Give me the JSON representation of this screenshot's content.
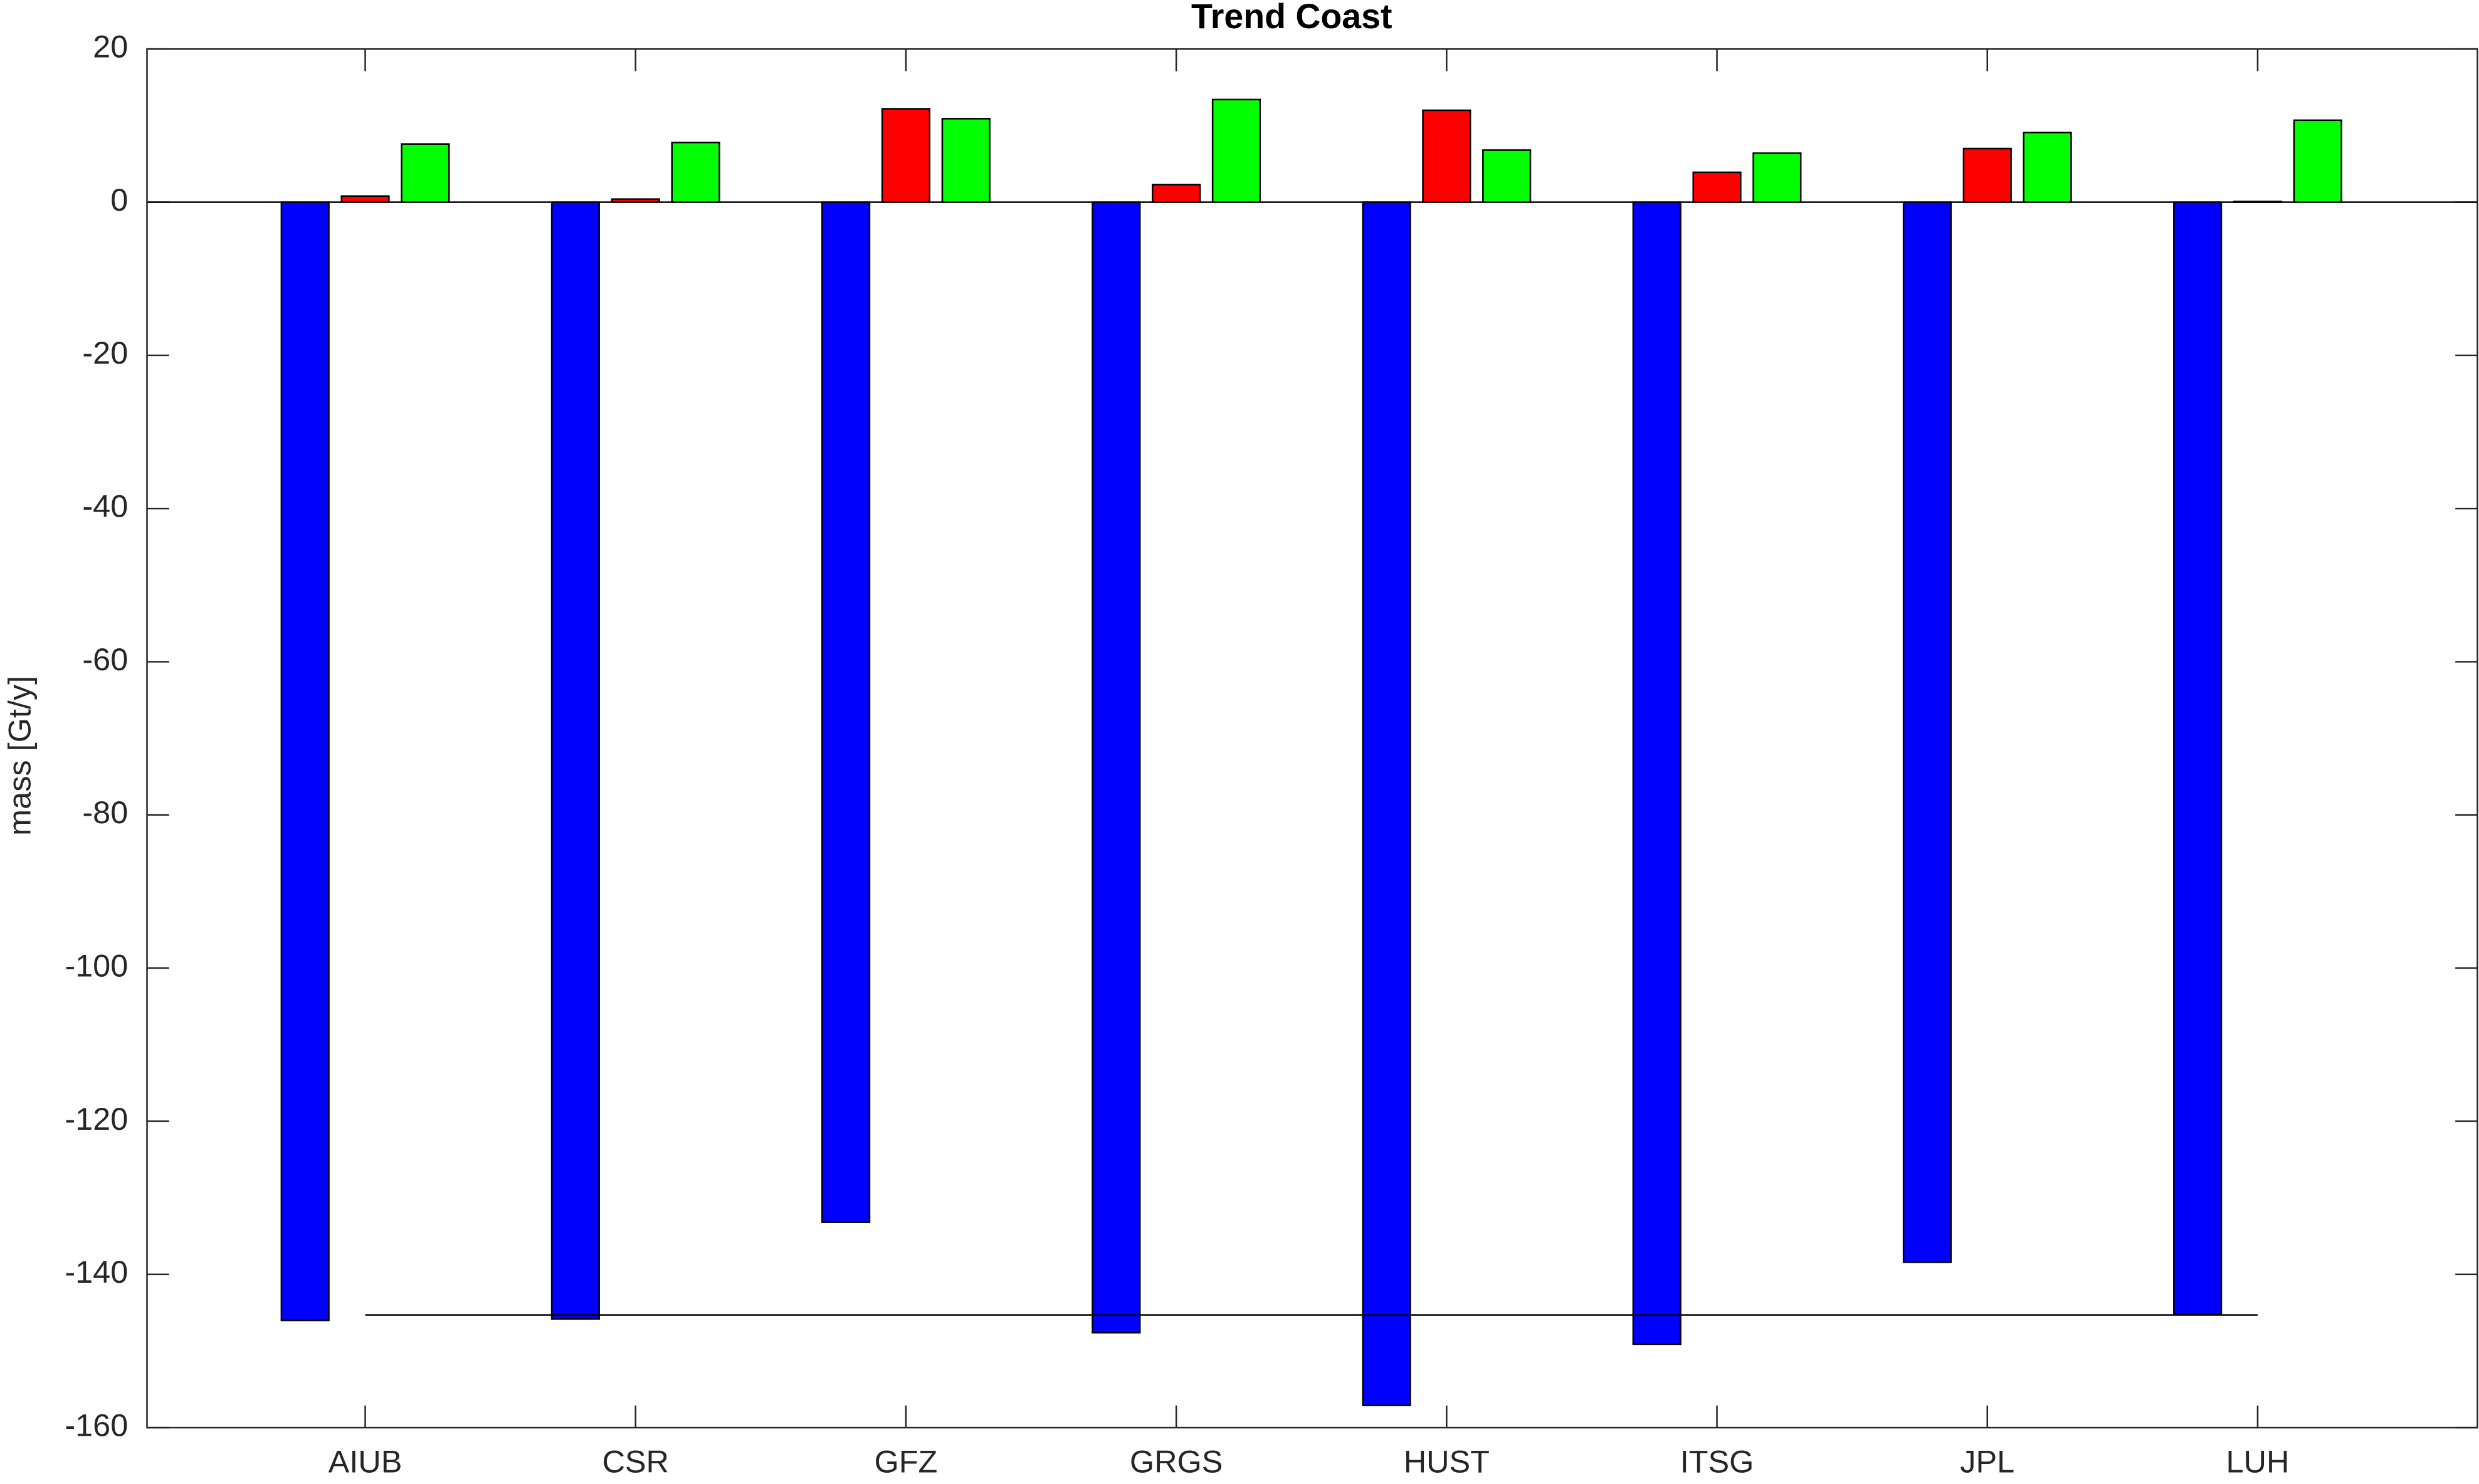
{
  "chart_data": {
    "type": "bar",
    "title": "Trend Coast",
    "y_label": "mass [Gt/y]",
    "categories": [
      "AIUB",
      "CSR",
      "GFZ",
      "GRGS",
      "HUST",
      "ITSG",
      "JPL",
      "LUH"
    ],
    "series": [
      {
        "color": "#0000ff",
        "values": [
          -146.0,
          -145.8,
          -133.2,
          -147.6,
          -157.1,
          -149.1,
          -138.4,
          -145.2
        ]
      },
      {
        "color": "#ff0000",
        "values": [
          0.8,
          0.4,
          12.2,
          2.3,
          12.0,
          3.9,
          7.0,
          0.1
        ]
      },
      {
        "color": "#00ff00",
        "values": [
          7.6,
          7.8,
          10.9,
          13.4,
          6.8,
          6.4,
          9.1,
          10.7
        ]
      }
    ],
    "hline": -145.3,
    "ylim": [
      -160,
      20
    ],
    "yticks": [
      -160,
      -140,
      -120,
      -100,
      -80,
      -60,
      -40,
      -20,
      0,
      20
    ],
    "grid": false
  }
}
